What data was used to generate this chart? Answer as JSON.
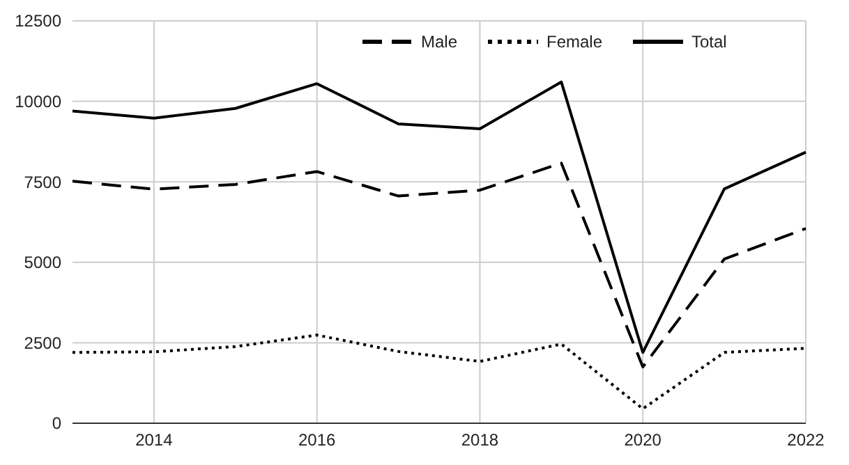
{
  "chart_data": {
    "type": "line",
    "x": [
      2013,
      2014,
      2015,
      2016,
      2017,
      2018,
      2019,
      2020,
      2021,
      2022
    ],
    "xlim": [
      2013,
      2022
    ],
    "xticks": [
      2014,
      2016,
      2018,
      2020,
      2022
    ],
    "ylim": [
      0,
      12500
    ],
    "yticks": [
      0,
      2500,
      5000,
      7500,
      10000,
      12500
    ],
    "grid": true,
    "legend": "top right",
    "series": [
      {
        "name": "Male",
        "color": "#000000",
        "line_style": "dashed",
        "values": [
          7520,
          7270,
          7420,
          7820,
          7060,
          7240,
          8080,
          1750,
          5100,
          6050
        ]
      },
      {
        "name": "Female",
        "color": "#000000",
        "line_style": "dotted",
        "values": [
          2200,
          2220,
          2380,
          2740,
          2230,
          1920,
          2460,
          450,
          2200,
          2330
        ]
      },
      {
        "name": "Total",
        "color": "#000000",
        "line_style": "solid",
        "values": [
          9700,
          9480,
          9780,
          10550,
          9300,
          9150,
          10600,
          2200,
          7280,
          8420
        ]
      }
    ]
  }
}
